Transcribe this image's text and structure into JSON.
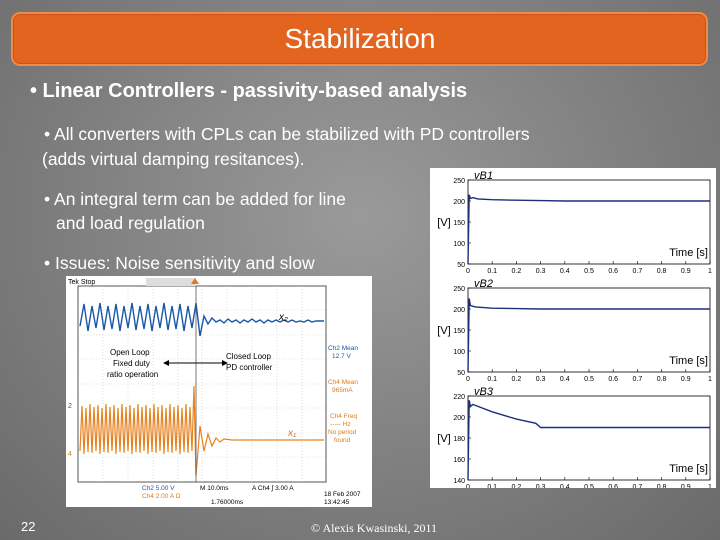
{
  "slide": {
    "title": "Stabilization",
    "heading": "• Linear Controllers - passivity-based analysis",
    "bullet1_line1": "• All converters with CPLs can be stabilized with PD controllers",
    "bullet1_line2": "(adds virtual damping resitances).",
    "bullet2_line1": "• An integral term can be added for line",
    "bullet2_line2": "and load regulation",
    "bullet3": "• Issues: Noise sensitivity and slow",
    "slide_number": "22",
    "copyright": "© Alexis Kwasinski, 2011"
  },
  "scope": {
    "top_left": "Tek Stop",
    "ch2_mean": "Ch2 Mean",
    "ch2_value": "12.7 V",
    "ch4_mean": "Ch4 Mean",
    "ch4_value": "965mA",
    "ch4_freq": "Ch4 Freq",
    "ch4_freq_value": "----- Hz",
    "no_period": "No period",
    "found": "found",
    "open_loop_1": "Open Loop",
    "open_loop_2": "Fixed duty",
    "open_loop_3": "ratio operation",
    "closed_loop_1": "Closed Loop",
    "closed_loop_2": "PD controller",
    "x2_label": "x₂",
    "x1_label": "x₁",
    "ch2_scale": "Ch2  5.00 V",
    "ch4_scale": "Ch4  2.00 A Ω",
    "timebase": "M 10.0ms",
    "trigger": "A Ch4 ∫ 3.00 A",
    "trig_pos": "1.76000ms",
    "date": "18 Feb 2007",
    "time": "13:42:45"
  },
  "chart_data": [
    {
      "type": "line",
      "series": [
        {
          "name": "vB1",
          "x": [
            0,
            0.005,
            0.01,
            0.02,
            0.04,
            0.1,
            0.2,
            0.3,
            0.4,
            0.5,
            0.6,
            0.7,
            0.8,
            0.9,
            1.0
          ],
          "y": [
            50,
            215,
            206,
            208,
            205,
            203,
            202,
            201,
            200,
            200,
            200,
            200,
            200,
            200,
            200
          ]
        }
      ],
      "xlabel": "Time [s]",
      "ylabel": "[V]",
      "xticks": [
        "0",
        "0.1",
        "0.2",
        "0.3",
        "0.4",
        "0.5",
        "0.6",
        "0.7",
        "0.8",
        "0.9",
        "1"
      ],
      "yticks": [
        "50",
        "100",
        "150",
        "200",
        "250"
      ],
      "xlim": [
        0,
        1
      ],
      "ylim": [
        50,
        250
      ]
    },
    {
      "type": "line",
      "series": [
        {
          "name": "vB2",
          "x": [
            0,
            0.005,
            0.01,
            0.03,
            0.1,
            0.2,
            0.3,
            0.4,
            0.5,
            0.6,
            0.7,
            0.8,
            0.9,
            1.0
          ],
          "y": [
            50,
            225,
            208,
            205,
            202,
            201,
            200,
            200,
            200,
            200,
            200,
            200,
            200,
            200
          ]
        }
      ],
      "xlabel": "Time [s]",
      "ylabel": "[V]",
      "xticks": [
        "0",
        "0.1",
        "0.2",
        "0.3",
        "0.4",
        "0.5",
        "0.6",
        "0.7",
        "0.8",
        "0.9",
        "1"
      ],
      "yticks": [
        "50",
        "100",
        "150",
        "200",
        "250"
      ],
      "xlim": [
        0,
        1
      ],
      "ylim": [
        50,
        250
      ]
    },
    {
      "type": "line",
      "series": [
        {
          "name": "vB3",
          "x": [
            0,
            0.005,
            0.01,
            0.02,
            0.1,
            0.2,
            0.28,
            0.3,
            0.4,
            0.5,
            0.6,
            0.7,
            0.8,
            0.9,
            1.0
          ],
          "y": [
            140,
            216,
            210,
            212,
            205,
            198,
            194,
            190,
            190,
            190,
            190,
            190,
            190,
            190,
            190
          ]
        }
      ],
      "xlabel": "Time [s]",
      "ylabel": "[V]",
      "xticks": [
        "0",
        "0.1",
        "0.2",
        "0.3",
        "0.4",
        "0.5",
        "0.6",
        "0.7",
        "0.8",
        "0.9",
        "1"
      ],
      "yticks": [
        "140",
        "160",
        "180",
        "200",
        "220"
      ],
      "xlim": [
        0,
        1
      ],
      "ylim": [
        140,
        220
      ]
    }
  ]
}
